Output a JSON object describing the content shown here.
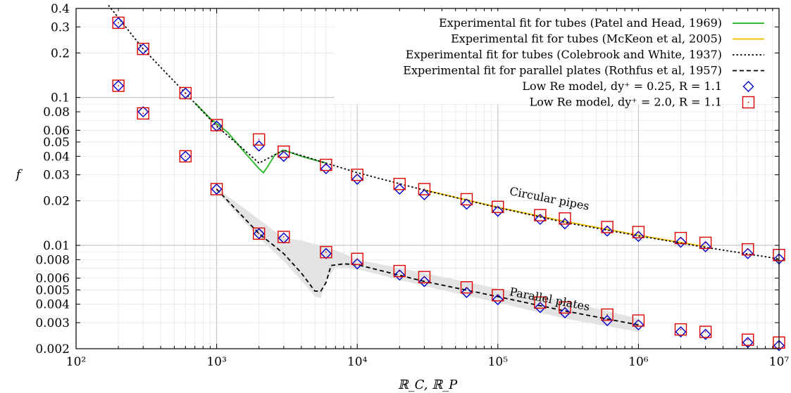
{
  "chart_data": {
    "type": "scatter",
    "xscale": "log",
    "yscale": "log",
    "xlim": [
      100,
      10000000
    ],
    "ylim": [
      0.002,
      0.4
    ],
    "xlabel": "ℝ_C, ℝ_P",
    "ylabel": "f",
    "x_ticks": [
      {
        "value": 100,
        "label": "10²"
      },
      {
        "value": 1000,
        "label": "10³"
      },
      {
        "value": 10000,
        "label": "10⁴"
      },
      {
        "value": 100000,
        "label": "10⁵"
      },
      {
        "value": 1000000,
        "label": "10⁶"
      },
      {
        "value": 10000000,
        "label": "10⁷"
      }
    ],
    "y_ticks": [
      {
        "value": 0.4,
        "label": "0.4"
      },
      {
        "value": 0.3,
        "label": "0.3"
      },
      {
        "value": 0.2,
        "label": "0.2"
      },
      {
        "value": 0.1,
        "label": "0.1"
      },
      {
        "value": 0.08,
        "label": "0.08"
      },
      {
        "value": 0.06,
        "label": "0.06"
      },
      {
        "value": 0.05,
        "label": "0.05"
      },
      {
        "value": 0.04,
        "label": "0.04"
      },
      {
        "value": 0.03,
        "label": "0.03"
      },
      {
        "value": 0.02,
        "label": "0.02"
      },
      {
        "value": 0.01,
        "label": "0.01"
      },
      {
        "value": 0.008,
        "label": "0.008"
      },
      {
        "value": 0.006,
        "label": "0.006"
      },
      {
        "value": 0.005,
        "label": "0.005"
      },
      {
        "value": 0.004,
        "label": "0.004"
      },
      {
        "value": 0.003,
        "label": "0.003"
      },
      {
        "value": 0.002,
        "label": "0.002"
      }
    ],
    "grid": true,
    "legend_position": "top-right",
    "legend": [
      {
        "label": "Experimental fit for tubes (Patel and Head, 1969)",
        "style": "solid",
        "color": "#33bb33"
      },
      {
        "label": "Experimental fit for tubes (McKeon et al, 2005)",
        "style": "solid",
        "color": "#f2c200"
      },
      {
        "label": "Experimental fit for tubes (Colebrook and White, 1937)",
        "style": "dotted",
        "color": "#000000"
      },
      {
        "label": "Experimental fit for parallel plates (Rothfus et al, 1957)",
        "style": "dashed",
        "color": "#000000"
      },
      {
        "label": "Low Re model, dy⁺ = 0.25, R = 1.1",
        "style": "diamond",
        "color": "#0000cc"
      },
      {
        "label": "Low Re model, dy⁺ = 2.0, R = 1.1",
        "style": "square",
        "color": "#dd0000"
      }
    ],
    "annotations": [
      {
        "text": "Circular pipes",
        "x": 120000,
        "y": 0.022,
        "rotate": 11
      },
      {
        "text": "Parallel plates",
        "x": 120000,
        "y": 0.0046,
        "rotate": 11
      }
    ],
    "series": [
      {
        "name": "Experimental fit for tubes (Patel and Head, 1969)",
        "kind": "line",
        "style": "solid",
        "color": "#33bb33",
        "points": [
          [
            700,
            0.092
          ],
          [
            900,
            0.072
          ],
          [
            1200,
            0.058
          ],
          [
            1600,
            0.042
          ],
          [
            2000,
            0.033
          ],
          [
            2150,
            0.031
          ],
          [
            2300,
            0.034
          ],
          [
            2600,
            0.041
          ],
          [
            3000,
            0.044
          ],
          [
            4000,
            0.04
          ],
          [
            6000,
            0.036
          ]
        ]
      },
      {
        "name": "Experimental fit for tubes (McKeon et al, 2005)",
        "kind": "line",
        "style": "solid",
        "color": "#f2c200",
        "points": [
          [
            30000,
            0.0237
          ],
          [
            100000,
            0.0181
          ],
          [
            300000,
            0.0145
          ],
          [
            1000000,
            0.0117
          ],
          [
            3000000,
            0.0098
          ]
        ]
      },
      {
        "name": "Experimental fit for tubes (Colebrook and White, 1937)",
        "kind": "line",
        "style": "dotted",
        "color": "#000000",
        "points": [
          [
            170,
            0.42
          ],
          [
            300,
            0.213
          ],
          [
            600,
            0.107
          ],
          [
            1000,
            0.064
          ],
          [
            1500,
            0.046
          ],
          [
            2000,
            0.036
          ],
          [
            3000,
            0.044
          ],
          [
            6000,
            0.036
          ],
          [
            10000,
            0.031
          ],
          [
            30000,
            0.0236
          ],
          [
            100000,
            0.018
          ],
          [
            300000,
            0.0143
          ],
          [
            1000000,
            0.0116
          ],
          [
            3000000,
            0.0097
          ],
          [
            10000000,
            0.0081
          ]
        ]
      },
      {
        "name": "Experimental fit for parallel plates (Rothfus et al, 1957)",
        "kind": "line",
        "style": "dashed",
        "color": "#000000",
        "points": [
          [
            1000,
            0.024
          ],
          [
            2000,
            0.012
          ],
          [
            3000,
            0.0088
          ],
          [
            4000,
            0.0065
          ],
          [
            5000,
            0.0049
          ],
          [
            5500,
            0.0049
          ],
          [
            6000,
            0.0056
          ],
          [
            6500,
            0.0073
          ],
          [
            8000,
            0.0075
          ],
          [
            10000,
            0.0074
          ],
          [
            30000,
            0.0057
          ],
          [
            100000,
            0.0045
          ],
          [
            300000,
            0.0036
          ],
          [
            1000000,
            0.0029
          ]
        ]
      },
      {
        "name": "Low Re model, dy⁺ = 0.25, R = 1.1",
        "kind": "marker",
        "marker": "diamond",
        "color": "#0000cc",
        "points": [
          [
            200,
            0.32
          ],
          [
            300,
            0.213
          ],
          [
            600,
            0.107
          ],
          [
            1000,
            0.064
          ],
          [
            2000,
            0.047
          ],
          [
            3000,
            0.04
          ],
          [
            6000,
            0.033
          ],
          [
            10000,
            0.028
          ],
          [
            20000,
            0.024
          ],
          [
            30000,
            0.022
          ],
          [
            60000,
            0.019
          ],
          [
            100000,
            0.017
          ],
          [
            200000,
            0.015
          ],
          [
            300000,
            0.014
          ],
          [
            600000,
            0.0125
          ],
          [
            1000000,
            0.0115
          ],
          [
            2000000,
            0.0105
          ],
          [
            3000000,
            0.0098
          ],
          [
            6000000,
            0.0088
          ],
          [
            10000000,
            0.0081
          ],
          [
            200,
            0.12
          ],
          [
            300,
            0.08
          ],
          [
            600,
            0.04
          ],
          [
            1000,
            0.024
          ],
          [
            2000,
            0.012
          ],
          [
            3000,
            0.0112
          ],
          [
            6000,
            0.0088
          ],
          [
            10000,
            0.0075
          ],
          [
            20000,
            0.0063
          ],
          [
            30000,
            0.0057
          ],
          [
            60000,
            0.0048
          ],
          [
            100000,
            0.0043
          ],
          [
            200000,
            0.0038
          ],
          [
            300000,
            0.0035
          ],
          [
            600000,
            0.0031
          ],
          [
            1000000,
            0.0029
          ],
          [
            2000000,
            0.0026
          ],
          [
            3000000,
            0.0025
          ],
          [
            6000000,
            0.0022
          ],
          [
            10000000,
            0.0021
          ]
        ]
      },
      {
        "name": "Low Re model, dy⁺ = 2.0, R = 1.1",
        "kind": "marker",
        "marker": "square",
        "color": "#dd0000",
        "points": [
          [
            200,
            0.32
          ],
          [
            300,
            0.213
          ],
          [
            600,
            0.107
          ],
          [
            1000,
            0.065
          ],
          [
            2000,
            0.052
          ],
          [
            3000,
            0.043
          ],
          [
            6000,
            0.035
          ],
          [
            10000,
            0.03
          ],
          [
            20000,
            0.026
          ],
          [
            30000,
            0.024
          ],
          [
            60000,
            0.0205
          ],
          [
            100000,
            0.0182
          ],
          [
            200000,
            0.016
          ],
          [
            300000,
            0.0152
          ],
          [
            600000,
            0.0133
          ],
          [
            1000000,
            0.0123
          ],
          [
            2000000,
            0.0112
          ],
          [
            3000000,
            0.0104
          ],
          [
            6000000,
            0.0094
          ],
          [
            10000000,
            0.0086
          ],
          [
            200,
            0.12
          ],
          [
            300,
            0.078
          ],
          [
            600,
            0.04
          ],
          [
            1000,
            0.024
          ],
          [
            2000,
            0.012
          ],
          [
            3000,
            0.0114
          ],
          [
            6000,
            0.009
          ],
          [
            10000,
            0.0081
          ],
          [
            20000,
            0.0067
          ],
          [
            30000,
            0.0061
          ],
          [
            60000,
            0.0052
          ],
          [
            100000,
            0.0046
          ],
          [
            200000,
            0.0041
          ],
          [
            300000,
            0.0038
          ],
          [
            600000,
            0.0034
          ],
          [
            1000000,
            0.0031
          ],
          [
            2000000,
            0.0027
          ],
          [
            3000000,
            0.0026
          ],
          [
            6000000,
            0.0023
          ],
          [
            10000000,
            0.0022
          ]
        ]
      }
    ],
    "bands": [
      {
        "name": "parallel-plates-scatter-band",
        "color": "#e3e3e3",
        "upper": [
          [
            1000,
            0.0245
          ],
          [
            2000,
            0.015
          ],
          [
            3000,
            0.0112
          ],
          [
            4000,
            0.0108
          ],
          [
            5000,
            0.0102
          ],
          [
            6000,
            0.0098
          ],
          [
            8000,
            0.0088
          ],
          [
            10000,
            0.008
          ],
          [
            30000,
            0.0065
          ],
          [
            100000,
            0.0051
          ],
          [
            300000,
            0.0042
          ],
          [
            1000000,
            0.0032
          ]
        ],
        "lower": [
          [
            1000,
            0.023
          ],
          [
            2000,
            0.0113
          ],
          [
            3000,
            0.0078
          ],
          [
            4000,
            0.0058
          ],
          [
            5000,
            0.0045
          ],
          [
            5500,
            0.0044
          ],
          [
            6000,
            0.0058
          ],
          [
            7000,
            0.0071
          ],
          [
            10000,
            0.0069
          ],
          [
            30000,
            0.0053
          ],
          [
            100000,
            0.0041
          ],
          [
            300000,
            0.0032
          ],
          [
            1000000,
            0.0026
          ]
        ]
      }
    ]
  }
}
